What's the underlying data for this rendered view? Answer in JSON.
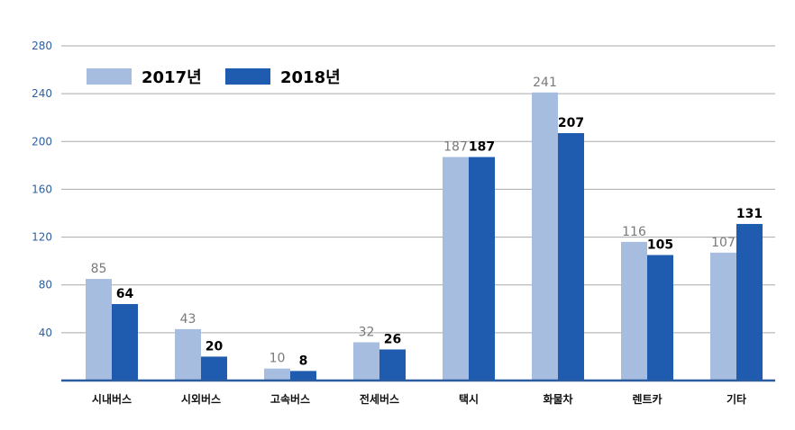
{
  "chart_data": {
    "type": "bar",
    "categories": [
      "시내버스",
      "시외버스",
      "고속버스",
      "전세버스",
      "택시",
      "화물차",
      "렌트카",
      "기타"
    ],
    "series": [
      {
        "name": "2017년",
        "values": [
          85,
          43,
          10,
          32,
          187,
          241,
          116,
          107
        ],
        "color": "#a6bde0"
      },
      {
        "name": "2018년",
        "values": [
          64,
          20,
          8,
          26,
          187,
          207,
          105,
          131
        ],
        "color": "#1f5cb0"
      }
    ],
    "ylim": [
      0,
      280
    ],
    "yticks": [
      40,
      80,
      120,
      160,
      200,
      240,
      280
    ],
    "grid": true,
    "legend_position": "top-left",
    "baseline_color": "#2a5d9f",
    "grid_color": "#a9a9a9"
  }
}
